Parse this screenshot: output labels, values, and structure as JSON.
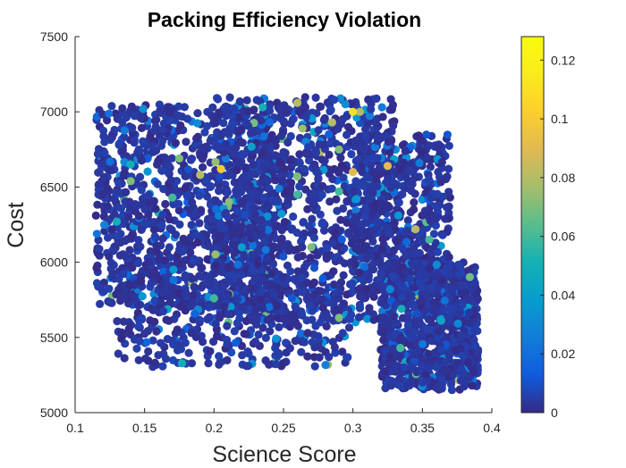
{
  "chart_data": {
    "type": "scatter",
    "title": "Packing Efficiency Violation",
    "xlabel": "Science Score",
    "ylabel": "Cost",
    "xlim": [
      0.1,
      0.4
    ],
    "ylim": [
      5000,
      7500
    ],
    "xticks": [
      "0.1",
      "0.15",
      "0.2",
      "0.25",
      "0.3",
      "0.35",
      "0.4"
    ],
    "yticks": [
      "5000",
      "5500",
      "6000",
      "6500",
      "7000",
      "7500"
    ],
    "colorbar": {
      "colormap": "parula",
      "clim": [
        0,
        0.128
      ],
      "ticks": [
        "0",
        "0.02",
        "0.04",
        "0.06",
        "0.08",
        "0.1",
        "0.12"
      ]
    },
    "grid": false,
    "marker": "filled-circle",
    "clusters": [
      {
        "x_range": [
          0.115,
          0.25
        ],
        "y_range": [
          5700,
          7050
        ],
        "approx_points": 1100
      },
      {
        "x_range": [
          0.2,
          0.33
        ],
        "y_range": [
          5600,
          7100
        ],
        "approx_points": 1000
      },
      {
        "x_range": [
          0.3,
          0.37
        ],
        "y_range": [
          5800,
          6850
        ],
        "approx_points": 500
      },
      {
        "x_range": [
          0.32,
          0.39
        ],
        "y_range": [
          5150,
          6000
        ],
        "approx_points": 900
      },
      {
        "x_range": [
          0.13,
          0.3
        ],
        "y_range": [
          5300,
          5900
        ],
        "approx_points": 350
      }
    ],
    "highlighted_points": [
      {
        "x": 0.14,
        "y": 6650,
        "value": 0.05
      },
      {
        "x": 0.14,
        "y": 6540,
        "value": 0.07
      },
      {
        "x": 0.13,
        "y": 6270,
        "value": 0.05
      },
      {
        "x": 0.175,
        "y": 6690,
        "value": 0.07
      },
      {
        "x": 0.17,
        "y": 6430,
        "value": 0.06
      },
      {
        "x": 0.19,
        "y": 6580,
        "value": 0.08
      },
      {
        "x": 0.2,
        "y": 5760,
        "value": 0.06
      },
      {
        "x": 0.235,
        "y": 7030,
        "value": 0.05
      },
      {
        "x": 0.26,
        "y": 7060,
        "value": 0.08
      },
      {
        "x": 0.26,
        "y": 6570,
        "value": 0.07
      },
      {
        "x": 0.26,
        "y": 6450,
        "value": 0.06
      },
      {
        "x": 0.27,
        "y": 6100,
        "value": 0.07
      },
      {
        "x": 0.285,
        "y": 6930,
        "value": 0.08
      },
      {
        "x": 0.29,
        "y": 6750,
        "value": 0.07
      },
      {
        "x": 0.29,
        "y": 6470,
        "value": 0.06
      },
      {
        "x": 0.3,
        "y": 6600,
        "value": 0.09
      },
      {
        "x": 0.305,
        "y": 7000,
        "value": 0.08
      },
      {
        "x": 0.325,
        "y": 6640,
        "value": 0.09
      },
      {
        "x": 0.335,
        "y": 5690,
        "value": 0.05
      },
      {
        "x": 0.355,
        "y": 6150,
        "value": 0.06
      },
      {
        "x": 0.345,
        "y": 6220,
        "value": 0.08
      },
      {
        "x": 0.29,
        "y": 5630,
        "value": 0.07
      },
      {
        "x": 0.22,
        "y": 6100,
        "value": 0.04
      },
      {
        "x": 0.205,
        "y": 6620,
        "value": 0.1
      },
      {
        "x": 0.3,
        "y": 7000,
        "value": 0.11
      }
    ]
  }
}
